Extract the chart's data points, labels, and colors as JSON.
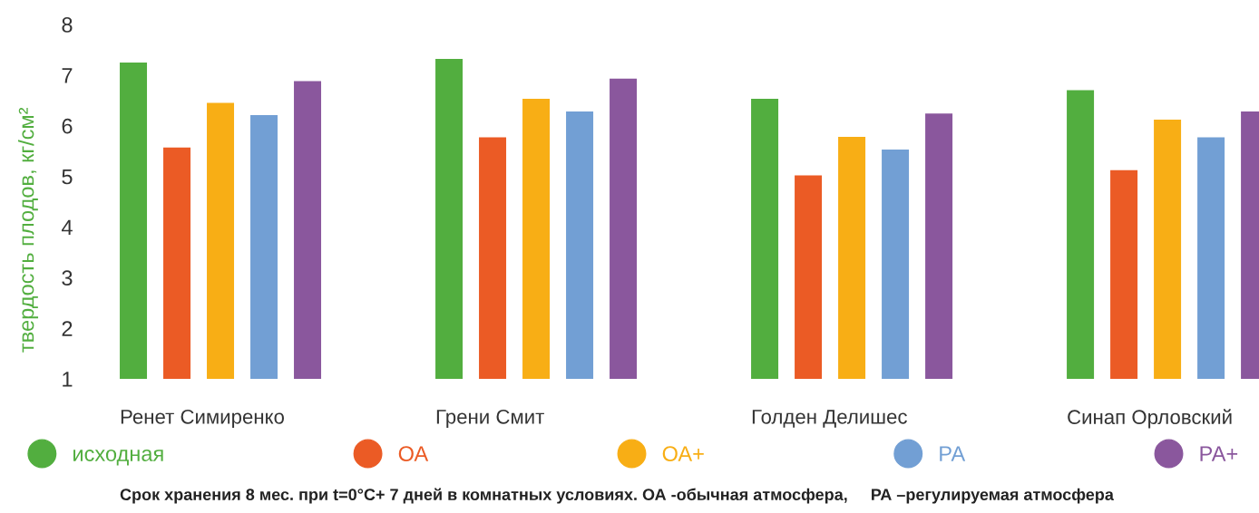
{
  "chart_data": {
    "type": "bar",
    "ylabel": "твердость плодов, кг/см²",
    "categories": [
      "Ренет Симиренко",
      "Грени Смит",
      "Голден Делишес",
      "Синап Орловский"
    ],
    "series": [
      {
        "name": "исходная",
        "color": "#52ae3f",
        "values": [
          7.25,
          7.32,
          6.53,
          6.7
        ]
      },
      {
        "name": "ОА",
        "color": "#eb5b25",
        "values": [
          5.57,
          5.77,
          5.02,
          5.12
        ]
      },
      {
        "name": "ОА+",
        "color": "#f8ae15",
        "values": [
          6.45,
          6.53,
          5.78,
          6.12
        ]
      },
      {
        "name": "РА",
        "color": "#729fd4",
        "values": [
          6.21,
          6.28,
          5.53,
          5.77
        ]
      },
      {
        "name": "РА+",
        "color": "#8a579d",
        "values": [
          6.88,
          6.93,
          6.24,
          6.28
        ]
      }
    ],
    "ylim": [
      1,
      8
    ],
    "yticks": [
      1,
      2,
      3,
      4,
      5,
      6,
      7,
      8
    ],
    "grid": false,
    "legend": "bottom",
    "annotations": [
      "Срок хранения 8 мес. при t=0°C+ 7 дней в комнатных условиях. ОА -обычная атмосфера,     РА –регулируемая атмосфера"
    ]
  }
}
